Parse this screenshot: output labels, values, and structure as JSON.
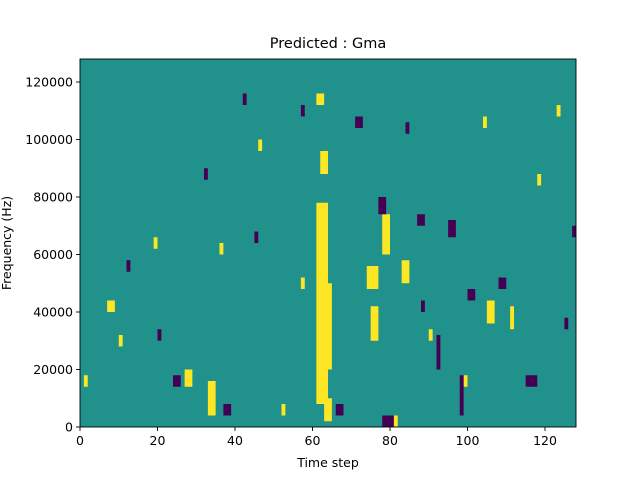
{
  "chart_data": {
    "type": "heatmap",
    "title": "Predicted : Gma",
    "xlabel": "Time step",
    "ylabel": "Frequency (Hz)",
    "xlim": [
      0,
      128
    ],
    "ylim": [
      0,
      128000
    ],
    "x_ticks": [
      0,
      20,
      40,
      60,
      80,
      100,
      120
    ],
    "y_ticks": [
      0,
      20000,
      40000,
      60000,
      80000,
      100000,
      120000
    ],
    "grid": false,
    "legend": "none",
    "colormap": "viridis",
    "levels": {
      "background": 0,
      "low": -1,
      "high": 1
    },
    "colors": {
      "background": "#21918c",
      "low": "#440154",
      "high": "#fde725"
    },
    "cells_note_units": "x = time step index, y = frequency bin (Hz); w = time steps, h = Hz",
    "high_cells": [
      {
        "x": 61,
        "y": 8000,
        "w": 3,
        "h": 70000
      },
      {
        "x": 63,
        "y": 2000,
        "w": 2,
        "h": 8000
      },
      {
        "x": 64,
        "y": 20000,
        "w": 1,
        "h": 30000
      },
      {
        "x": 80,
        "y": 0,
        "w": 2,
        "h": 4000
      },
      {
        "x": 75,
        "y": 30000,
        "w": 2,
        "h": 12000
      },
      {
        "x": 74,
        "y": 48000,
        "w": 3,
        "h": 8000
      },
      {
        "x": 78,
        "y": 60000,
        "w": 2,
        "h": 14000
      },
      {
        "x": 83,
        "y": 50000,
        "w": 2,
        "h": 8000
      },
      {
        "x": 105,
        "y": 36000,
        "w": 2,
        "h": 8000
      },
      {
        "x": 111,
        "y": 34000,
        "w": 1,
        "h": 8000
      },
      {
        "x": 61,
        "y": 112000,
        "w": 2,
        "h": 4000
      },
      {
        "x": 62,
        "y": 88000,
        "w": 2,
        "h": 8000
      },
      {
        "x": 1,
        "y": 14000,
        "w": 1,
        "h": 4000
      },
      {
        "x": 7,
        "y": 40000,
        "w": 2,
        "h": 4000
      },
      {
        "x": 10,
        "y": 28000,
        "w": 1,
        "h": 4000
      },
      {
        "x": 19,
        "y": 62000,
        "w": 1,
        "h": 4000
      },
      {
        "x": 27,
        "y": 14000,
        "w": 2,
        "h": 6000
      },
      {
        "x": 33,
        "y": 4000,
        "w": 2,
        "h": 12000
      },
      {
        "x": 36,
        "y": 60000,
        "w": 1,
        "h": 4000
      },
      {
        "x": 46,
        "y": 96000,
        "w": 1,
        "h": 4000
      },
      {
        "x": 52,
        "y": 4000,
        "w": 1,
        "h": 4000
      },
      {
        "x": 57,
        "y": 48000,
        "w": 1,
        "h": 4000
      },
      {
        "x": 90,
        "y": 30000,
        "w": 1,
        "h": 4000
      },
      {
        "x": 99,
        "y": 14000,
        "w": 1,
        "h": 4000
      },
      {
        "x": 104,
        "y": 104000,
        "w": 1,
        "h": 4000
      },
      {
        "x": 118,
        "y": 84000,
        "w": 1,
        "h": 4000
      },
      {
        "x": 123,
        "y": 108000,
        "w": 1,
        "h": 4000
      }
    ],
    "low_cells": [
      {
        "x": 78,
        "y": 0,
        "w": 3,
        "h": 4000
      },
      {
        "x": 66,
        "y": 4000,
        "w": 2,
        "h": 4000
      },
      {
        "x": 77,
        "y": 74000,
        "w": 2,
        "h": 6000
      },
      {
        "x": 84,
        "y": 102000,
        "w": 1,
        "h": 4000
      },
      {
        "x": 87,
        "y": 70000,
        "w": 2,
        "h": 4000
      },
      {
        "x": 95,
        "y": 66000,
        "w": 2,
        "h": 6000
      },
      {
        "x": 100,
        "y": 44000,
        "w": 2,
        "h": 4000
      },
      {
        "x": 108,
        "y": 48000,
        "w": 2,
        "h": 4000
      },
      {
        "x": 115,
        "y": 14000,
        "w": 3,
        "h": 4000
      },
      {
        "x": 71,
        "y": 104000,
        "w": 2,
        "h": 4000
      },
      {
        "x": 57,
        "y": 108000,
        "w": 1,
        "h": 4000
      },
      {
        "x": 42,
        "y": 112000,
        "w": 1,
        "h": 4000
      },
      {
        "x": 37,
        "y": 4000,
        "w": 2,
        "h": 4000
      },
      {
        "x": 24,
        "y": 14000,
        "w": 2,
        "h": 4000
      },
      {
        "x": 12,
        "y": 54000,
        "w": 1,
        "h": 4000
      },
      {
        "x": 20,
        "y": 30000,
        "w": 1,
        "h": 4000
      },
      {
        "x": 32,
        "y": 86000,
        "w": 1,
        "h": 4000
      },
      {
        "x": 45,
        "y": 64000,
        "w": 1,
        "h": 4000
      },
      {
        "x": 88,
        "y": 40000,
        "w": 1,
        "h": 4000
      },
      {
        "x": 92,
        "y": 20000,
        "w": 1,
        "h": 12000
      },
      {
        "x": 98,
        "y": 4000,
        "w": 1,
        "h": 14000
      },
      {
        "x": 125,
        "y": 34000,
        "w": 1,
        "h": 4000
      },
      {
        "x": 127,
        "y": 66000,
        "w": 1,
        "h": 4000
      }
    ]
  }
}
